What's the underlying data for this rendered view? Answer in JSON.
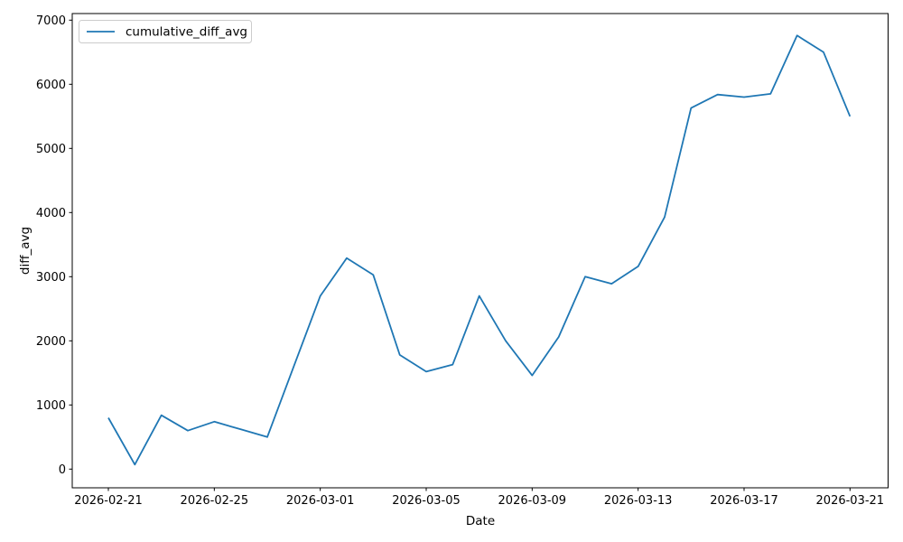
{
  "figure": {
    "background": "#ffffff",
    "accent_color": "#1f77b4",
    "text_color": "#000000",
    "spine_color": "#000000",
    "legend_border_color": "#cccccc"
  },
  "chart_data": {
    "type": "line",
    "title": "",
    "xlabel": "Date",
    "ylabel": "diff_avg",
    "grid": false,
    "legend": {
      "position": "upper-left",
      "entries": [
        "cumulative_diff_avg"
      ]
    },
    "x": [
      "2026-02-21",
      "2026-02-22",
      "2026-02-23",
      "2026-02-24",
      "2026-02-25",
      "2026-02-26",
      "2026-02-27",
      "2026-02-28",
      "2026-03-01",
      "2026-03-02",
      "2026-03-03",
      "2026-03-04",
      "2026-03-05",
      "2026-03-06",
      "2026-03-07",
      "2026-03-08",
      "2026-03-09",
      "2026-03-10",
      "2026-03-11",
      "2026-03-12",
      "2026-03-13",
      "2026-03-14",
      "2026-03-15",
      "2026-03-16",
      "2026-03-17",
      "2026-03-18",
      "2026-03-19",
      "2026-03-20",
      "2026-03-21"
    ],
    "series": [
      {
        "name": "cumulative_diff_avg",
        "color": "#1f77b4",
        "values": [
          800,
          70,
          840,
          600,
          740,
          620,
          500,
          1600,
          2700,
          3290,
          3030,
          1780,
          1520,
          1630,
          2700,
          2000,
          1460,
          2060,
          3000,
          2890,
          3160,
          3930,
          5630,
          5840,
          5800,
          5850,
          6760,
          6500,
          5500
        ]
      }
    ],
    "x_tick_indices": [
      0,
      4,
      8,
      12,
      16,
      20,
      24,
      28
    ],
    "x_tick_labels": [
      "2026-02-21",
      "2026-02-25",
      "2026-03-01",
      "2026-03-05",
      "2026-03-09",
      "2026-03-13",
      "2026-03-17",
      "2026-03-21"
    ],
    "y_ticks": [
      "0",
      "1000",
      "2000",
      "3000",
      "4000",
      "5000",
      "6000",
      "7000"
    ],
    "y_tick_values": [
      0,
      1000,
      2000,
      3000,
      4000,
      5000,
      6000,
      7000
    ],
    "ylim": [
      0,
      7000
    ]
  }
}
